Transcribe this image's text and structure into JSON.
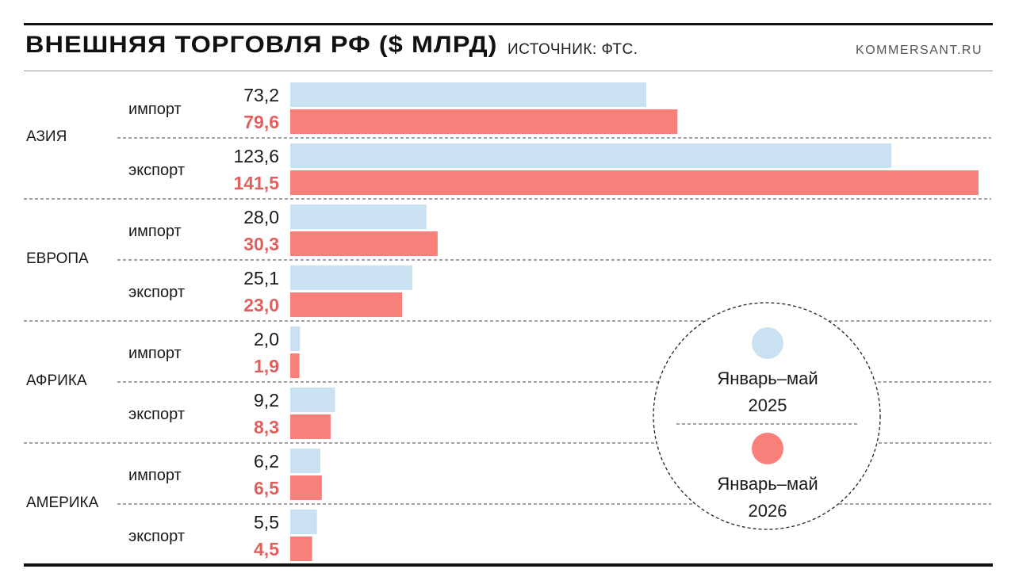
{
  "header": {
    "title": "ВНЕШНЯЯ ТОРГОВЛЯ РФ ($ МЛРД)",
    "source": "ИСТОЧНИК: ФТС.",
    "brand": "KOMMERSANT.RU"
  },
  "chart_data": {
    "type": "bar",
    "orientation": "horizontal",
    "title": "ВНЕШНЯЯ ТОРГОВЛЯ РФ ($ МЛРД)",
    "legend_placement": "right-bottom",
    "series": [
      {
        "name": "Январь–май 2025",
        "color": "#c9e1f0",
        "label_color": "#1a1a1a"
      },
      {
        "name": "Январь–май 2026",
        "color": "#f87f7a",
        "label_color": "#e0605e"
      }
    ],
    "legend": [
      {
        "line1": "Январь–май",
        "line2": "2025",
        "color": "#c9e1f0"
      },
      {
        "line1": "Январь–май",
        "line2": "2026",
        "color": "#f87f7a"
      }
    ],
    "xlim": [
      0,
      141.5
    ],
    "groups": [
      {
        "region": "АЗИЯ",
        "rows": [
          {
            "flow": "импорт",
            "values": [
              73.2,
              79.6
            ],
            "labels": [
              "73,2",
              "79,6"
            ]
          },
          {
            "flow": "экспорт",
            "values": [
              123.6,
              141.5
            ],
            "labels": [
              "123,6",
              "141,5"
            ]
          }
        ]
      },
      {
        "region": "ЕВРОПА",
        "rows": [
          {
            "flow": "импорт",
            "values": [
              28.0,
              30.3
            ],
            "labels": [
              "28,0",
              "30,3"
            ]
          },
          {
            "flow": "экспорт",
            "values": [
              25.1,
              23.0
            ],
            "labels": [
              "25,1",
              "23,0"
            ]
          }
        ]
      },
      {
        "region": "АФРИКА",
        "rows": [
          {
            "flow": "импорт",
            "values": [
              2.0,
              1.9
            ],
            "labels": [
              "2,0",
              "1,9"
            ]
          },
          {
            "flow": "экспорт",
            "values": [
              9.2,
              8.3
            ],
            "labels": [
              "9,2",
              "8,3"
            ]
          }
        ]
      },
      {
        "region": "АМЕРИКА",
        "rows": [
          {
            "flow": "импорт",
            "values": [
              6.2,
              6.5
            ],
            "labels": [
              "6,2",
              "6,5"
            ]
          },
          {
            "flow": "экспорт",
            "values": [
              5.5,
              4.5
            ],
            "labels": [
              "5,5",
              "4,5"
            ]
          }
        ]
      }
    ]
  }
}
